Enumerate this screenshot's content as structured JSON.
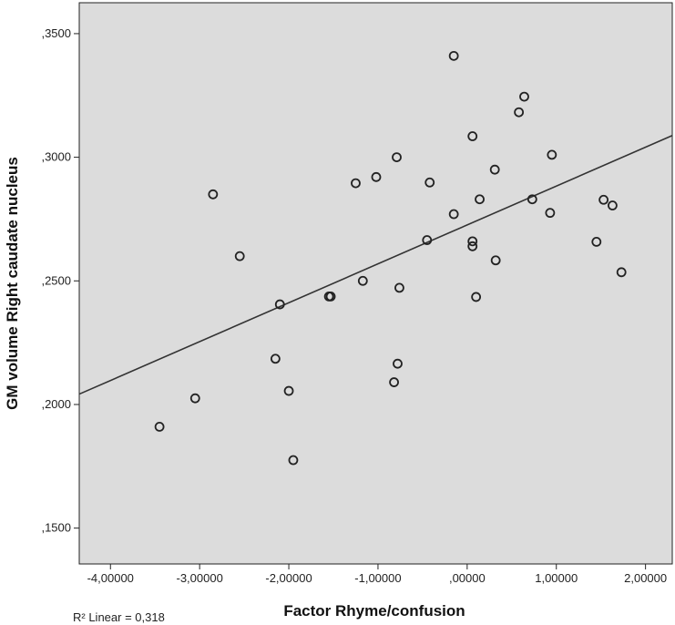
{
  "chart_data": {
    "type": "scatter",
    "xlabel": "Factor Rhyme/confusion",
    "ylabel": "GM volume Right caudate nucleus",
    "xlim": [
      -4.35,
      2.3
    ],
    "ylim": [
      0.1355,
      0.3625
    ],
    "xticks": [
      -4,
      -3,
      -2,
      -1,
      0,
      1,
      2
    ],
    "xtick_labels": [
      "-4,00000",
      "-3,00000",
      "-2,00000",
      "-1,00000",
      ",00000",
      "1,00000",
      "2,00000"
    ],
    "yticks": [
      0.15,
      0.2,
      0.25,
      0.3,
      0.35
    ],
    "ytick_labels": [
      ",1500",
      ",2000",
      ",2500",
      ",3000",
      ",3500"
    ],
    "grid": false,
    "colors": {
      "plot_bg": "#dcdcdc",
      "marker": "#222222",
      "fit_line": "#333333"
    },
    "fit_line": {
      "x": [
        -4.35,
        2.3
      ],
      "y": [
        0.2042,
        0.3088
      ]
    },
    "r2_label": "R² Linear = 0,318",
    "points": [
      {
        "x": -3.45,
        "y": 0.191
      },
      {
        "x": -3.05,
        "y": 0.2025
      },
      {
        "x": -2.85,
        "y": 0.285
      },
      {
        "x": -2.55,
        "y": 0.26
      },
      {
        "x": -2.15,
        "y": 0.2185
      },
      {
        "x": -2.1,
        "y": 0.2405
      },
      {
        "x": -2.0,
        "y": 0.2055
      },
      {
        "x": -1.95,
        "y": 0.1775
      },
      {
        "x": -1.55,
        "y": 0.2437
      },
      {
        "x": -1.53,
        "y": 0.2437
      },
      {
        "x": -1.25,
        "y": 0.2895
      },
      {
        "x": -1.17,
        "y": 0.25
      },
      {
        "x": -1.02,
        "y": 0.292
      },
      {
        "x": -0.82,
        "y": 0.209
      },
      {
        "x": -0.79,
        "y": 0.3
      },
      {
        "x": -0.78,
        "y": 0.2165
      },
      {
        "x": -0.76,
        "y": 0.2472
      },
      {
        "x": -0.45,
        "y": 0.2665
      },
      {
        "x": -0.42,
        "y": 0.2898
      },
      {
        "x": -0.15,
        "y": 0.277
      },
      {
        "x": -0.15,
        "y": 0.341
      },
      {
        "x": 0.06,
        "y": 0.3085
      },
      {
        "x": 0.06,
        "y": 0.264
      },
      {
        "x": 0.06,
        "y": 0.266
      },
      {
        "x": 0.1,
        "y": 0.2435
      },
      {
        "x": 0.14,
        "y": 0.283
      },
      {
        "x": 0.31,
        "y": 0.295
      },
      {
        "x": 0.32,
        "y": 0.2583
      },
      {
        "x": 0.58,
        "y": 0.3182
      },
      {
        "x": 0.64,
        "y": 0.3245
      },
      {
        "x": 0.73,
        "y": 0.283
      },
      {
        "x": 0.93,
        "y": 0.2775
      },
      {
        "x": 0.95,
        "y": 0.301
      },
      {
        "x": 1.45,
        "y": 0.2658
      },
      {
        "x": 1.53,
        "y": 0.2828
      },
      {
        "x": 1.63,
        "y": 0.2805
      },
      {
        "x": 1.73,
        "y": 0.2535
      }
    ]
  }
}
